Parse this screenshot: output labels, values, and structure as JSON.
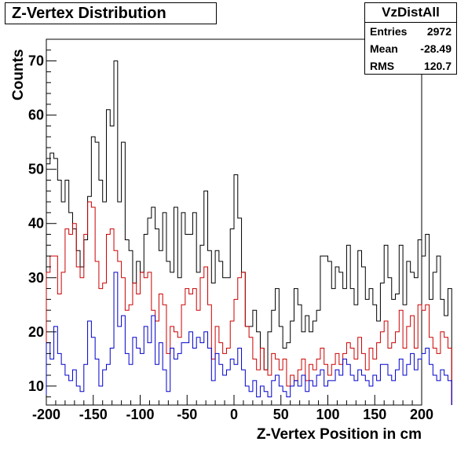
{
  "chart_data": {
    "type": "step-histogram",
    "title": "Z-Vertex Distribution",
    "xlabel": "Z-Vertex Position in cm",
    "ylabel": "Counts",
    "xlim": [
      -200,
      200
    ],
    "ylim": [
      6.5,
      74
    ],
    "x_ticks": [
      -200,
      -150,
      -100,
      -50,
      0,
      50,
      100,
      150,
      200
    ],
    "y_ticks": [
      10,
      20,
      30,
      40,
      50,
      60,
      70
    ],
    "bin_width": 4,
    "stats": {
      "name": "VzDistAll",
      "entries_label": "Entries",
      "entries": "2972",
      "mean_label": "Mean",
      "mean": "-28.49",
      "rms_label": "RMS",
      "rms": "120.7"
    },
    "series": [
      {
        "color": "#000000",
        "values": [
          51,
          53,
          52,
          48,
          44,
          48,
          42,
          39,
          35,
          32,
          37,
          45,
          56,
          55,
          48,
          44,
          61,
          58,
          70,
          44,
          55,
          37,
          35,
          29,
          33,
          31,
          38,
          41,
          43,
          39,
          35,
          42,
          33,
          31,
          43,
          30,
          42,
          38,
          38,
          42,
          31,
          36,
          46,
          35,
          29,
          35,
          33,
          30,
          30,
          39,
          49,
          41,
          31,
          21,
          21,
          24,
          20,
          17,
          13,
          20,
          24,
          28,
          21,
          17,
          18,
          22,
          28,
          25,
          20,
          23,
          20,
          22,
          24,
          34,
          34,
          33,
          28,
          32,
          31,
          28,
          36,
          28,
          25,
          35,
          32,
          26,
          28,
          25,
          22,
          29,
          36,
          30,
          26,
          27,
          36,
          25,
          33,
          31,
          30,
          37,
          34,
          38,
          26,
          31,
          34,
          26,
          23,
          28
        ]
      },
      {
        "color": "#cc0000",
        "values": [
          31,
          34,
          34,
          27,
          31,
          39,
          38,
          40,
          32,
          30,
          38,
          44,
          43,
          33,
          28,
          29,
          38,
          39,
          35,
          33,
          30,
          24,
          25,
          29,
          27,
          31,
          30,
          31,
          24,
          22,
          27,
          25,
          16,
          21,
          20,
          19,
          25,
          28,
          27,
          28,
          24,
          30,
          32,
          25,
          15,
          21,
          18,
          16,
          17,
          22,
          26,
          30,
          31,
          21,
          19,
          15,
          13,
          17,
          13,
          12,
          16,
          15,
          13,
          15,
          10,
          12,
          11,
          13,
          15,
          11,
          14,
          13,
          15,
          17,
          14,
          12,
          14,
          16,
          14,
          16,
          18,
          17,
          15,
          19,
          16,
          13,
          17,
          15,
          18,
          20,
          22,
          17,
          18,
          20,
          24,
          17,
          21,
          23,
          17,
          25,
          24,
          25,
          19,
          17,
          16,
          20,
          19,
          17
        ]
      },
      {
        "color": "#0000cc",
        "values": [
          18,
          15,
          21,
          16,
          14,
          12,
          11,
          13,
          10,
          9,
          14,
          22,
          19,
          15,
          10,
          13,
          14,
          17,
          31,
          21,
          23,
          16,
          14,
          19,
          17,
          16,
          21,
          18,
          23,
          14,
          18,
          13,
          9,
          17,
          15,
          16,
          18,
          18,
          20,
          17,
          19,
          18,
          20,
          17,
          11,
          16,
          14,
          12,
          13,
          15,
          14,
          17,
          13,
          10,
          9,
          11,
          8,
          10,
          9,
          8,
          11,
          12,
          10,
          9,
          8,
          10,
          11,
          10,
          12,
          9,
          11,
          10,
          12,
          13,
          10,
          11,
          11,
          13,
          12,
          15,
          14,
          12,
          11,
          13,
          12,
          11,
          10,
          12,
          11,
          14,
          14,
          12,
          11,
          13,
          15,
          12,
          14,
          16,
          13,
          15,
          16,
          17,
          14,
          12,
          11,
          13,
          12,
          11
        ]
      }
    ]
  }
}
